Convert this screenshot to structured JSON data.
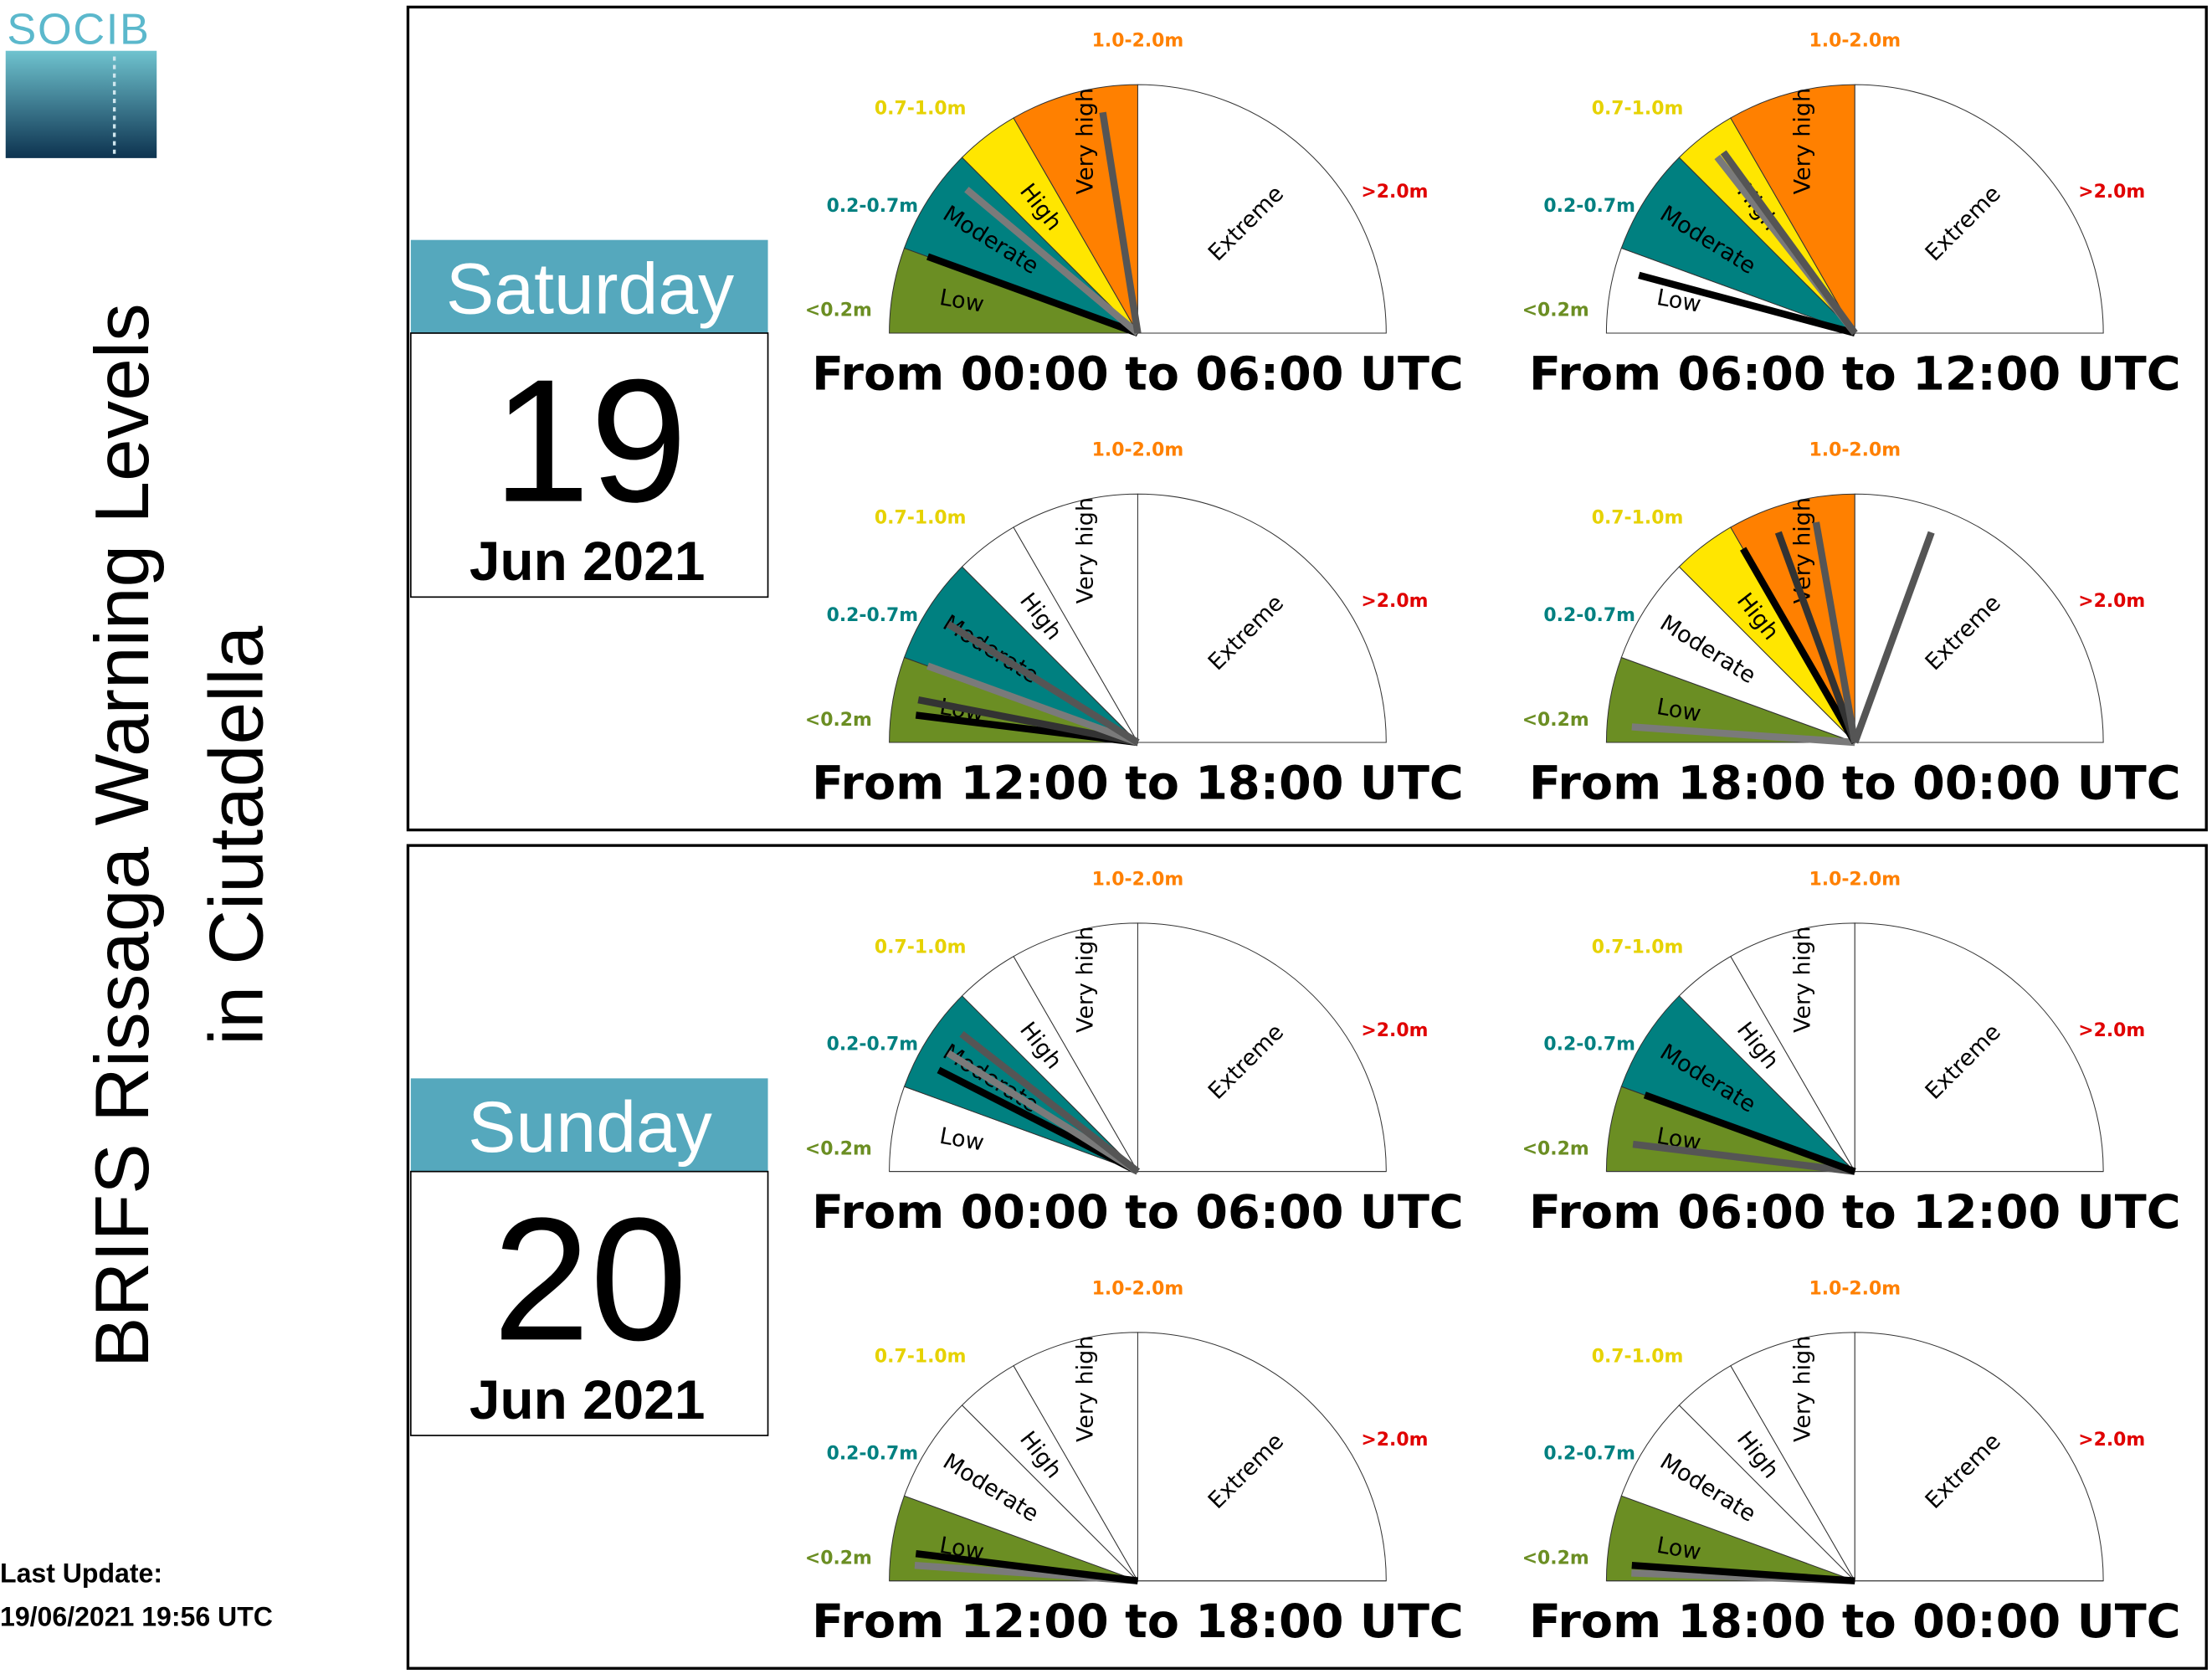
{
  "logo": {
    "text": "SOCIB"
  },
  "title": {
    "line1": "BRIFS Rissaga Warning Levels",
    "line2": "in Ciutadella"
  },
  "last_update": {
    "label": "Last Update:",
    "value": "19/06/2021 19:56 UTC"
  },
  "colors": {
    "low": "#6B8E23",
    "moderate": "#008080",
    "high": "#FFE600",
    "very_high": "#FF8000",
    "extreme": "#FFFFFF",
    "label_low": "#6B8E23",
    "label_moderate": "#008080",
    "label_high": "#E6D200",
    "label_very_high": "#FF8000",
    "label_extreme": "#E00000",
    "calendar_header": "#55A8BD"
  },
  "gauge_levels": [
    {
      "key": "low",
      "name": "Low",
      "range": "<0.2m"
    },
    {
      "key": "moderate",
      "name": "Moderate",
      "range": "0.2-0.7m"
    },
    {
      "key": "high",
      "name": "High",
      "range": "0.7-1.0m"
    },
    {
      "key": "very_high",
      "name": "Very high",
      "range": "1.0-2.0m"
    },
    {
      "key": "extreme",
      "name": "Extreme",
      "range": ">2.0m"
    }
  ],
  "chart_data": [
    {
      "type": "gauge",
      "day": "Saturday",
      "date_number": "19",
      "month_year": "Jun 2021",
      "periods": [
        {
          "label": "From 00:00 to 06:00 UTC",
          "highlighted": [
            "low",
            "moderate",
            "high",
            "very_high"
          ],
          "needles_deg": [
            20,
            40,
            81
          ],
          "needle_colors": [
            "#000000",
            "#7a7a7a",
            "#555555"
          ]
        },
        {
          "label": "From 06:00 to 12:00 UTC",
          "highlighted": [
            "moderate",
            "high",
            "very_high"
          ],
          "needles_deg": [
            15,
            52,
            54
          ],
          "needle_colors": [
            "#000000",
            "#7a7a7a",
            "#555555"
          ]
        },
        {
          "label": "From 12:00 to 18:00 UTC",
          "highlighted": [
            "low",
            "moderate"
          ],
          "needles_deg": [
            7,
            11,
            20,
            32
          ],
          "needle_colors": [
            "#000000",
            "#333333",
            "#7a7a7a",
            "#555555"
          ]
        },
        {
          "label": "From 18:00 to 00:00 UTC",
          "highlighted": [
            "low",
            "high",
            "very_high"
          ],
          "needles_deg": [
            4,
            60,
            70,
            80,
            110
          ],
          "needle_colors": [
            "#7a7a7a",
            "#000000",
            "#333333",
            "#555555",
            "#555555"
          ]
        }
      ]
    },
    {
      "type": "gauge",
      "day": "Sunday",
      "date_number": "20",
      "month_year": "Jun 2021",
      "periods": [
        {
          "label": "From 00:00 to 06:00 UTC",
          "highlighted": [
            "moderate"
          ],
          "needles_deg": [
            27,
            32,
            38
          ],
          "needle_colors": [
            "#000000",
            "#7a7a7a",
            "#555555"
          ]
        },
        {
          "label": "From 06:00 to 12:00 UTC",
          "highlighted": [
            "low",
            "moderate"
          ],
          "needles_deg": [
            7,
            20
          ],
          "needle_colors": [
            "#555555",
            "#000000"
          ]
        },
        {
          "label": "From 12:00 to 18:00 UTC",
          "highlighted": [
            "low"
          ],
          "needles_deg": [
            4,
            7
          ],
          "needle_colors": [
            "#7a7a7a",
            "#000000"
          ]
        },
        {
          "label": "From 18:00 to 00:00 UTC",
          "highlighted": [
            "low"
          ],
          "needles_deg": [
            2,
            4
          ],
          "needle_colors": [
            "#7a7a7a",
            "#000000"
          ]
        }
      ]
    }
  ]
}
